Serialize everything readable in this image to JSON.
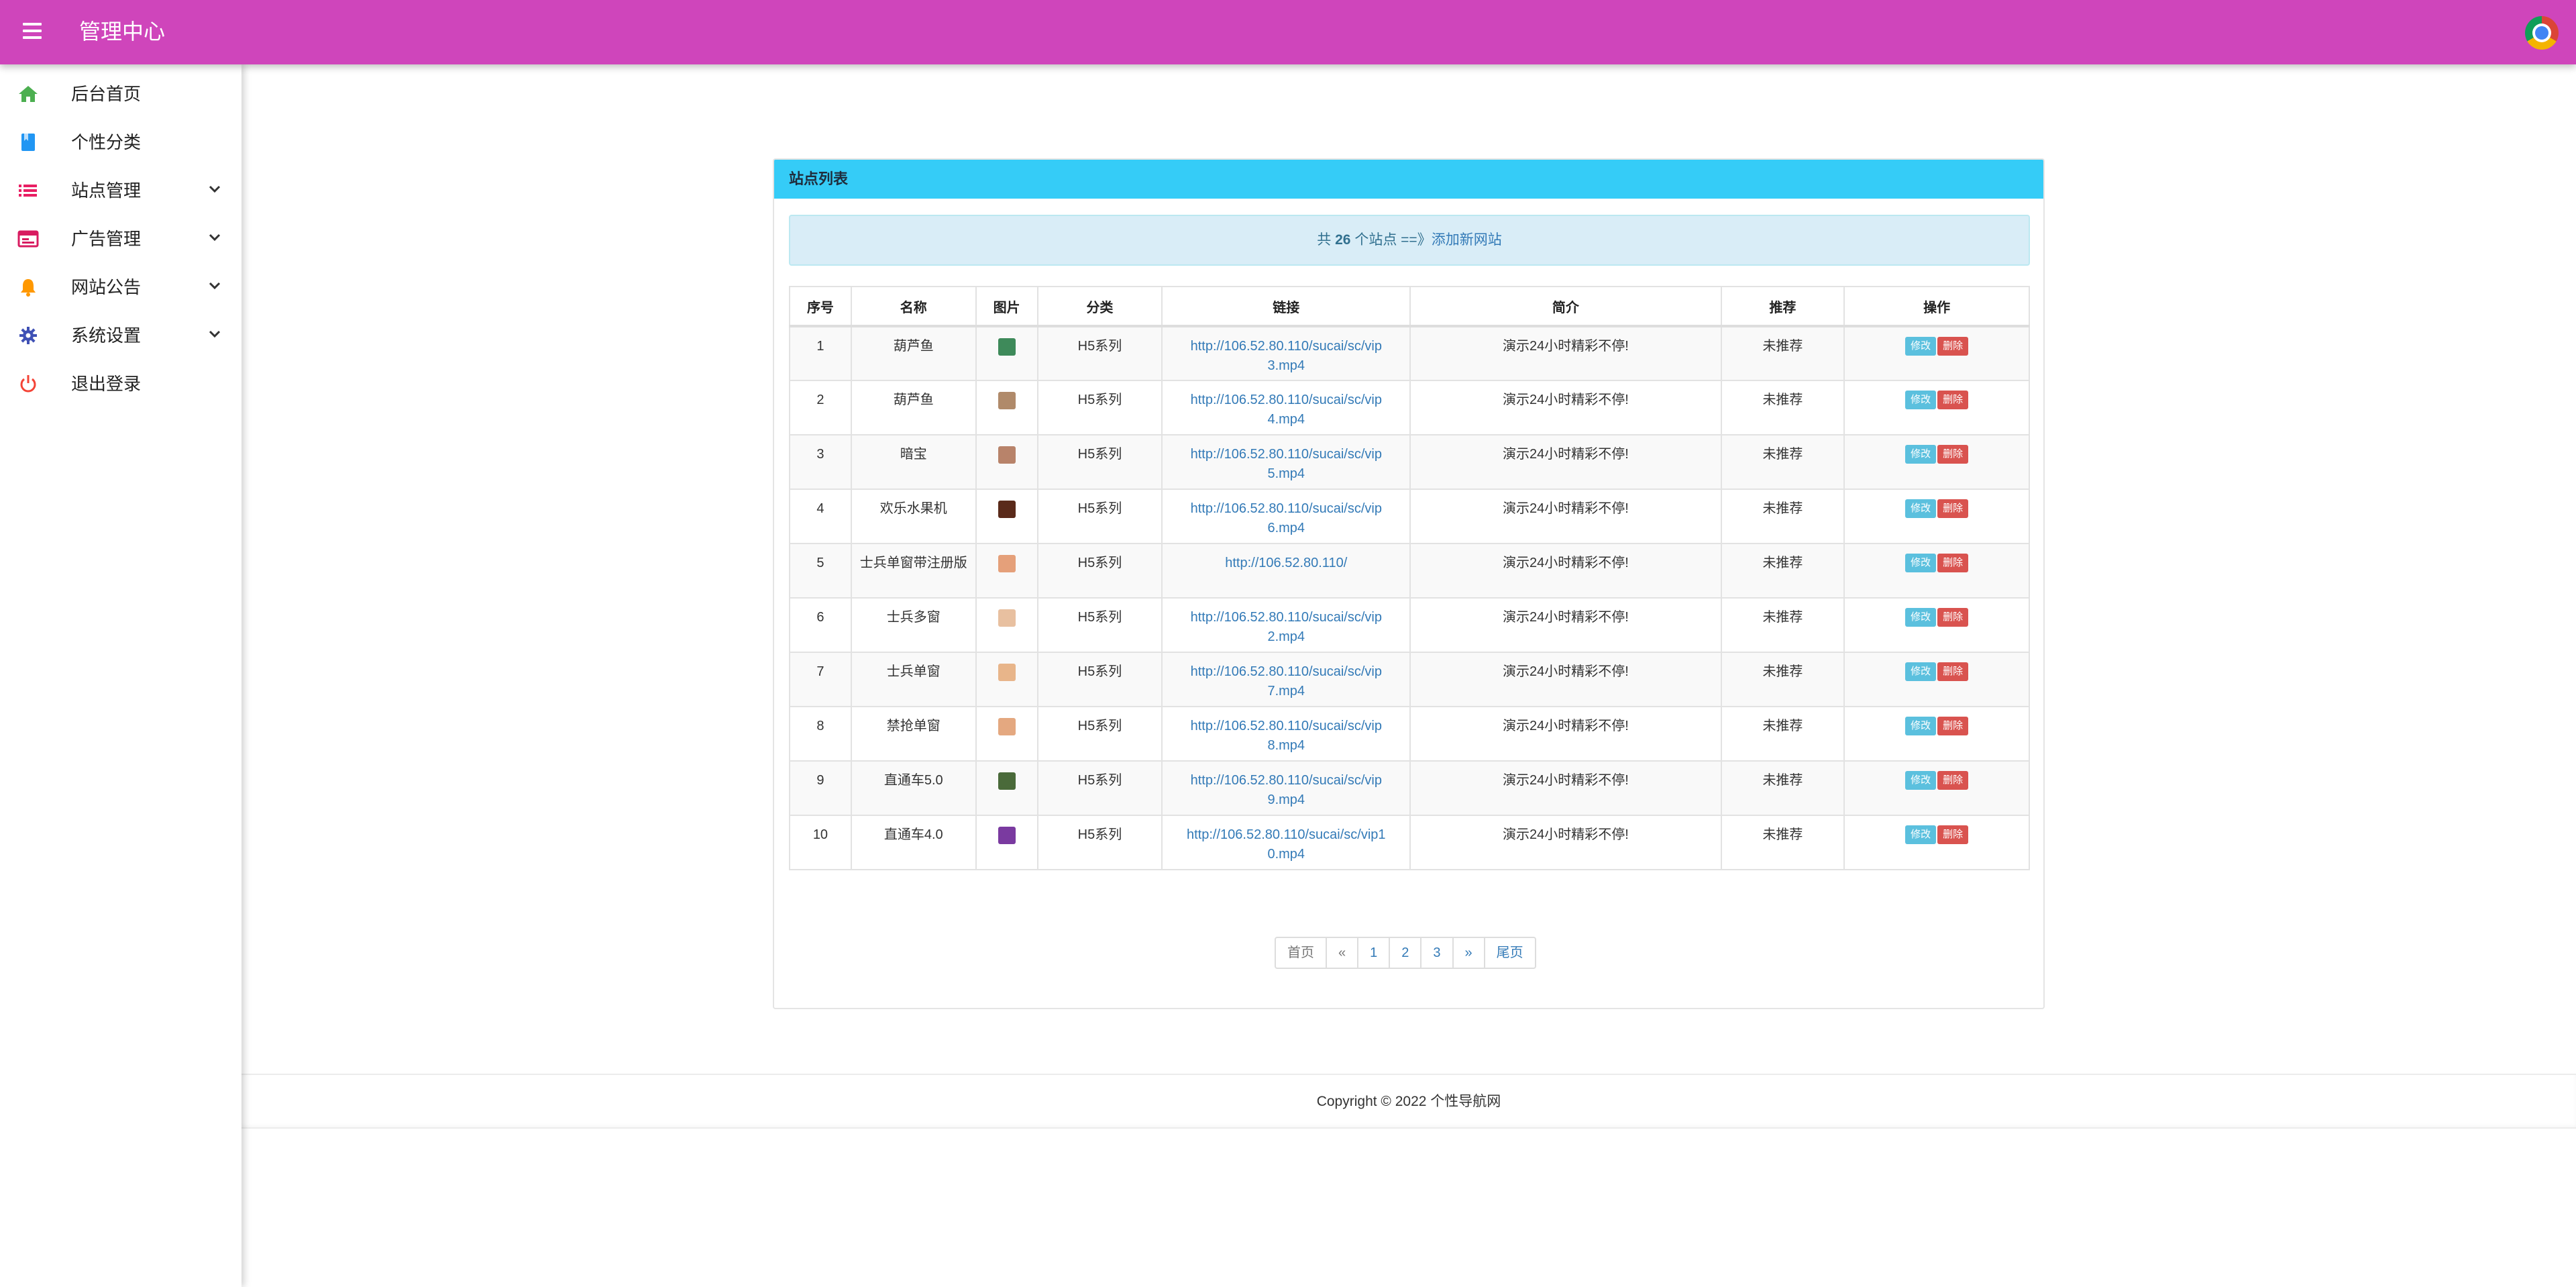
{
  "header": {
    "title": "管理中心",
    "menu_icon": "hamburger-menu-icon",
    "avatar_icon": "user-avatar-icon"
  },
  "sidebar": {
    "items": [
      {
        "label": "后台首页",
        "icon": "home-icon",
        "color": "#4caf50",
        "expandable": false
      },
      {
        "label": "个性分类",
        "icon": "bookmark-icon",
        "color": "#2196f3",
        "expandable": false
      },
      {
        "label": "站点管理",
        "icon": "list-icon",
        "color": "#e91e63",
        "expandable": true
      },
      {
        "label": "广告管理",
        "icon": "ad-window-icon",
        "color": "#d81b60",
        "expandable": true
      },
      {
        "label": "网站公告",
        "icon": "bell-icon",
        "color": "#ff9800",
        "expandable": true
      },
      {
        "label": "系统设置",
        "icon": "gear-icon",
        "color": "#3f51b5",
        "expandable": true
      },
      {
        "label": "退出登录",
        "icon": "power-icon",
        "color": "#f44336",
        "expandable": false
      }
    ]
  },
  "panel": {
    "title": "站点列表",
    "summary": {
      "prefix": "共",
      "count": "26",
      "suffix": "个站点 ==》",
      "link": "添加新网站"
    },
    "columns": [
      "序号",
      "名称",
      "图片",
      "分类",
      "链接",
      "简介",
      "推荐",
      "操作"
    ],
    "rows": [
      {
        "id": "1",
        "name": "葫芦鱼",
        "thumb_color": "#3e8a5a",
        "category": "H5系列",
        "url": "http://106.52.80.110/sucai/sc/vip3.mp4",
        "intro": "演示24小时精彩不停!",
        "recommend": "未推荐"
      },
      {
        "id": "2",
        "name": "葫芦鱼",
        "thumb_color": "#b08a6a",
        "category": "H5系列",
        "url": "http://106.52.80.110/sucai/sc/vip4.mp4",
        "intro": "演示24小时精彩不停!",
        "recommend": "未推荐"
      },
      {
        "id": "3",
        "name": "暗宝",
        "thumb_color": "#b8836a",
        "category": "H5系列",
        "url": "http://106.52.80.110/sucai/sc/vip5.mp4",
        "intro": "演示24小时精彩不停!",
        "recommend": "未推荐"
      },
      {
        "id": "4",
        "name": "欢乐水果机",
        "thumb_color": "#5a2a1a",
        "category": "H5系列",
        "url": "http://106.52.80.110/sucai/sc/vip6.mp4",
        "intro": "演示24小时精彩不停!",
        "recommend": "未推荐"
      },
      {
        "id": "5",
        "name": "士兵单窗带注册版",
        "thumb_color": "#e5a07a",
        "category": "H5系列",
        "url": "http://106.52.80.110/",
        "intro": "演示24小时精彩不停!",
        "recommend": "未推荐"
      },
      {
        "id": "6",
        "name": "士兵多窗",
        "thumb_color": "#e8c0a0",
        "category": "H5系列",
        "url": "http://106.52.80.110/sucai/sc/vip2.mp4",
        "intro": "演示24小时精彩不停!",
        "recommend": "未推荐"
      },
      {
        "id": "7",
        "name": "士兵单窗",
        "thumb_color": "#e8b58a",
        "category": "H5系列",
        "url": "http://106.52.80.110/sucai/sc/vip7.mp4",
        "intro": "演示24小时精彩不停!",
        "recommend": "未推荐"
      },
      {
        "id": "8",
        "name": "禁抢单窗",
        "thumb_color": "#e4a880",
        "category": "H5系列",
        "url": "http://106.52.80.110/sucai/sc/vip8.mp4",
        "intro": "演示24小时精彩不停!",
        "recommend": "未推荐"
      },
      {
        "id": "9",
        "name": "直通车5.0",
        "thumb_color": "#4a6a3a",
        "category": "H5系列",
        "url": "http://106.52.80.110/sucai/sc/vip9.mp4",
        "intro": "演示24小时精彩不停!",
        "recommend": "未推荐"
      },
      {
        "id": "10",
        "name": "直通车4.0",
        "thumb_color": "#7a3aa0",
        "category": "H5系列",
        "url": "http://106.52.80.110/sucai/sc/vip10.mp4",
        "intro": "演示24小时精彩不停!",
        "recommend": "未推荐"
      }
    ],
    "actions": {
      "edit": "修改",
      "delete": "删除"
    },
    "pager": [
      "首页",
      "«",
      "1",
      "2",
      "3",
      "»",
      "尾页"
    ]
  },
  "footer": {
    "text": "Copyright © 2022 个性导航网"
  },
  "colors": {
    "topbar": "#cf45bb",
    "panel_head": "#35ccf7",
    "summary_bg": "#d9edf7",
    "edit_btn": "#5bc0de",
    "delete_btn": "#d9534f",
    "link": "#337ab7"
  }
}
